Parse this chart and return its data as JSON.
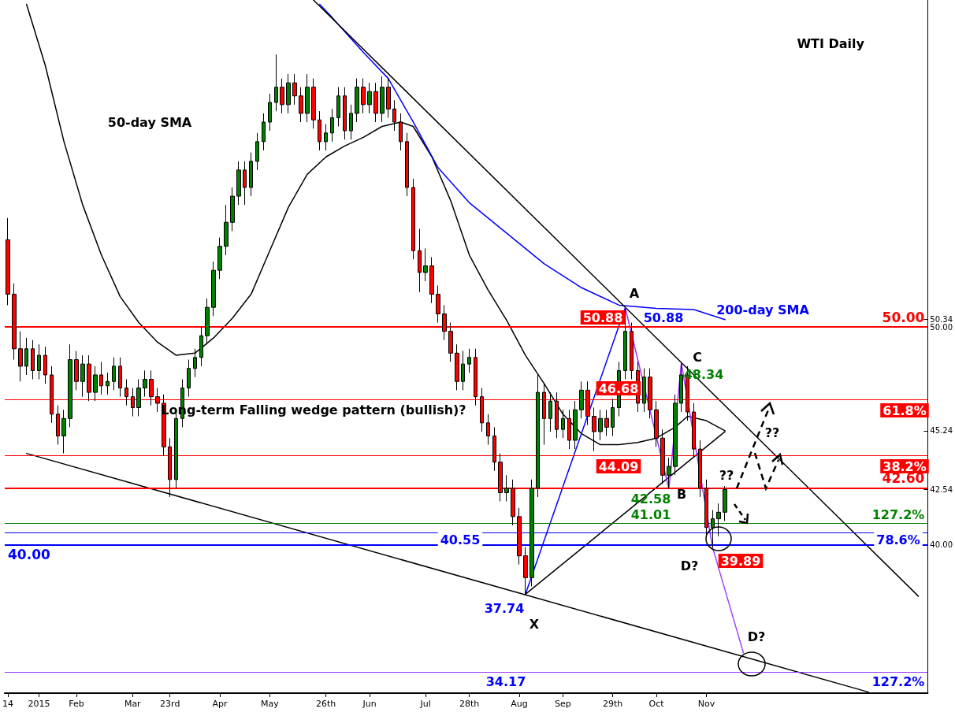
{
  "chart_data": {
    "type": "candlestick",
    "title": "WTI Daily",
    "categories": [
      "14",
      null,
      null,
      null,
      null,
      "2015",
      null,
      null,
      null,
      null,
      null,
      "Feb",
      null,
      null,
      null,
      null,
      null,
      null,
      null,
      null,
      "Mar",
      null,
      null,
      null,
      null,
      null,
      "23rd",
      null,
      null,
      null,
      null,
      null,
      null,
      null,
      "Apr",
      null,
      null,
      null,
      null,
      null,
      null,
      null,
      "May",
      null,
      null,
      null,
      null,
      null,
      null,
      null,
      null,
      "26th",
      null,
      null,
      null,
      null,
      null,
      null,
      "Jun",
      null,
      null,
      null,
      null,
      null,
      null,
      null,
      null,
      "Jul",
      null,
      null,
      null,
      null,
      null,
      null,
      "28th",
      null,
      null,
      null,
      null,
      null,
      null,
      null,
      "Aug",
      null,
      null,
      null,
      null,
      null,
      null,
      "Sep",
      null,
      null,
      null,
      null,
      null,
      null,
      null,
      "29th",
      null,
      null,
      null,
      null,
      null,
      null,
      "Oct",
      null,
      null,
      null,
      null,
      null,
      null,
      null,
      "Nov",
      null,
      null,
      null,
      null,
      null,
      null,
      null,
      null,
      null,
      null,
      null,
      null,
      null,
      null,
      null,
      null,
      null,
      null,
      null,
      null,
      null,
      null,
      null,
      null,
      null,
      null,
      null,
      null,
      null,
      null,
      null,
      null,
      null,
      null,
      null
    ],
    "ohlc": [
      [
        54,
        55,
        51,
        51.5
      ],
      [
        51.5,
        52,
        48.5,
        49
      ],
      [
        49,
        49.8,
        47.5,
        48.2
      ],
      [
        48.2,
        49.5,
        47.8,
        49
      ],
      [
        49,
        49.4,
        47.6,
        48
      ],
      [
        48,
        49.2,
        47.6,
        48.7
      ],
      [
        48.7,
        49.1,
        47.4,
        47.8
      ],
      [
        47.8,
        48.2,
        45.6,
        46
      ],
      [
        46,
        46.4,
        44.6,
        45
      ],
      [
        45,
        46.2,
        44.2,
        45.8
      ],
      [
        45.8,
        49.2,
        45.4,
        48.5
      ],
      [
        48.5,
        48.9,
        47.1,
        47.5
      ],
      [
        47.5,
        48.7,
        46.8,
        48.3
      ],
      [
        48.3,
        48.7,
        46.6,
        47
      ],
      [
        47,
        48.2,
        46.6,
        47.8
      ],
      [
        47.8,
        48.4,
        46.9,
        47.3
      ],
      [
        47.3,
        47.9,
        46.9,
        47.5
      ],
      [
        47.5,
        48.6,
        47.1,
        48.2
      ],
      [
        48.2,
        48.6,
        46.8,
        47.2
      ],
      [
        47.2,
        47.6,
        46.4,
        46.8
      ],
      [
        46.8,
        47.2,
        45.9,
        46.3
      ],
      [
        46.3,
        47.6,
        45.9,
        47.2
      ],
      [
        47.2,
        48,
        46.8,
        47.6
      ],
      [
        47.6,
        48,
        46.4,
        46.8
      ],
      [
        46.8,
        47.2,
        46.1,
        46.5
      ],
      [
        46.5,
        46.9,
        44.1,
        44.5
      ],
      [
        44.5,
        44.9,
        42.2,
        43
      ],
      [
        43,
        46.2,
        42.6,
        45.8
      ],
      [
        45.8,
        47.6,
        45.4,
        47.2
      ],
      [
        47.2,
        48.5,
        46.8,
        48.1
      ],
      [
        48.1,
        49,
        47.7,
        48.6
      ],
      [
        48.6,
        50,
        48.2,
        49.6
      ],
      [
        49.6,
        51.3,
        49.2,
        50.9
      ],
      [
        50.9,
        53,
        50.5,
        52.6
      ],
      [
        52.6,
        54.1,
        52.2,
        53.7
      ],
      [
        53.7,
        55.6,
        53.3,
        54.8
      ],
      [
        54.8,
        56.4,
        54.4,
        56
      ],
      [
        56,
        57.6,
        55.6,
        57.2
      ],
      [
        57.2,
        57.6,
        55.6,
        56.4
      ],
      [
        56.4,
        58,
        56,
        57.6
      ],
      [
        57.6,
        58.9,
        57.2,
        58.5
      ],
      [
        58.5,
        59.8,
        58.1,
        59.4
      ],
      [
        59.4,
        60.7,
        59,
        60.3
      ],
      [
        60.3,
        62.5,
        59.9,
        61
      ],
      [
        61,
        61.4,
        59.8,
        60.2
      ],
      [
        60.2,
        61.6,
        59.8,
        61.2
      ],
      [
        61.2,
        61.6,
        60.2,
        60.6
      ],
      [
        60.6,
        61,
        59.4,
        59.8
      ],
      [
        59.8,
        61.6,
        59.4,
        61
      ],
      [
        61,
        61.4,
        59.1,
        59.5
      ],
      [
        59.5,
        59.9,
        58.1,
        58.5
      ],
      [
        58.5,
        59.3,
        58.1,
        58.9
      ],
      [
        58.9,
        60,
        58.5,
        59.6
      ],
      [
        59.6,
        61,
        59.2,
        60.6
      ],
      [
        60.6,
        61,
        58.6,
        59
      ],
      [
        59,
        60.2,
        58.6,
        59.8
      ],
      [
        59.8,
        61.4,
        59.4,
        61
      ],
      [
        61,
        61.4,
        59.8,
        60.2
      ],
      [
        60.2,
        61.2,
        59.8,
        60.8
      ],
      [
        60.8,
        61.2,
        59.4,
        59.8
      ],
      [
        59.8,
        61.5,
        59.4,
        61
      ],
      [
        61,
        61.4,
        59.6,
        60
      ],
      [
        60,
        60.4,
        59,
        59.4
      ],
      [
        59.4,
        59.8,
        58.1,
        58.5
      ],
      [
        58.5,
        58.9,
        56,
        56.4
      ],
      [
        56.4,
        56.8,
        53.1,
        53.5
      ],
      [
        53.5,
        54.5,
        51.6,
        52.5
      ],
      [
        52.5,
        53.6,
        52.1,
        52.8
      ],
      [
        52.8,
        53.2,
        51.1,
        51.5
      ],
      [
        51.5,
        51.9,
        50.2,
        50.6
      ],
      [
        50.6,
        51,
        49.4,
        49.8
      ],
      [
        49.8,
        50.2,
        48.4,
        48.8
      ],
      [
        48.8,
        49.2,
        47.1,
        47.5
      ],
      [
        47.5,
        48.9,
        47.1,
        48.3
      ],
      [
        48.3,
        49,
        47.9,
        48.6
      ],
      [
        48.6,
        49,
        46.4,
        46.8
      ],
      [
        46.8,
        47.2,
        45.2,
        45.6
      ],
      [
        45.6,
        46,
        44.6,
        45
      ],
      [
        45,
        45.4,
        43.4,
        43.8
      ],
      [
        43.8,
        44.2,
        42,
        42.4
      ],
      [
        42.4,
        43.2,
        42,
        42.6
      ],
      [
        42.6,
        43,
        40.9,
        41.3
      ],
      [
        41.3,
        41.7,
        39.1,
        39.5
      ],
      [
        39.5,
        39.9,
        37.74,
        38.5
      ],
      [
        38.5,
        43,
        38.1,
        42.6
      ],
      [
        42.6,
        47.8,
        42.2,
        47
      ],
      [
        47,
        47.4,
        44.6,
        45.8
      ],
      [
        45.8,
        47,
        45.2,
        46.6
      ],
      [
        46.6,
        47,
        44.9,
        45.3
      ],
      [
        45.3,
        46.2,
        44.9,
        45.8
      ],
      [
        45.8,
        46.2,
        44.4,
        44.8
      ],
      [
        44.8,
        46.6,
        44.4,
        46.2
      ],
      [
        46.2,
        47.5,
        45.8,
        47.1
      ],
      [
        47.1,
        47.5,
        45.5,
        45.9
      ],
      [
        45.9,
        46.3,
        44.3,
        45.2
      ],
      [
        45.2,
        46.2,
        44.8,
        45.8
      ],
      [
        45.8,
        46.2,
        45,
        45.4
      ],
      [
        45.4,
        46.7,
        45,
        46.3
      ],
      [
        46.3,
        48.4,
        45.9,
        48
      ],
      [
        48,
        50.88,
        47.6,
        49.8
      ],
      [
        49.8,
        50.2,
        47.6,
        48
      ],
      [
        48,
        48.4,
        46.1,
        46.5
      ],
      [
        46.5,
        48.1,
        46.1,
        47.7
      ],
      [
        47.7,
        48.1,
        45.8,
        46.2
      ],
      [
        46.2,
        46.6,
        44.5,
        44.9
      ],
      [
        44.9,
        45.3,
        42.8,
        43.2
      ],
      [
        43.2,
        44,
        42.58,
        43.6
      ],
      [
        43.6,
        46.9,
        43.2,
        46.5
      ],
      [
        46.5,
        48.34,
        46.1,
        47.8
      ],
      [
        47.8,
        48.2,
        45.7,
        46.1
      ],
      [
        46.1,
        46.5,
        44,
        44.4
      ],
      [
        44.4,
        44.8,
        42.2,
        42.6
      ],
      [
        42.6,
        43,
        40.4,
        40.8
      ],
      [
        40.8,
        41.6,
        39.89,
        41.2
      ],
      [
        41.2,
        41.9,
        40.4,
        41.5
      ],
      [
        41.5,
        42.7,
        41.1,
        42.54
      ],
      null,
      null,
      null,
      null,
      null,
      null,
      null,
      null,
      null,
      null,
      null,
      null,
      null,
      null,
      null,
      null,
      null,
      null,
      null,
      null,
      null,
      null,
      null,
      null,
      null,
      null,
      null,
      null,
      null,
      null,
      null,
      null
    ],
    "ylim": [
      33.2,
      65
    ],
    "yticks": [
      {
        "value": 40,
        "label": "40.00"
      },
      {
        "value": 42.54,
        "label": "42.54"
      },
      {
        "value": 45.24,
        "label": "45.24"
      },
      {
        "value": 50,
        "label": "50.00"
      },
      {
        "value": 50.34,
        "label": "50.34"
      }
    ],
    "marker": "none",
    "series": [
      {
        "type": "line",
        "color": "#000000",
        "values": [
          null,
          null,
          null,
          64.8,
          null,
          null,
          62,
          null,
          null,
          58.5,
          null,
          null,
          55.6,
          null,
          null,
          53.3,
          null,
          null,
          51.4,
          null,
          null,
          50.2,
          null,
          null,
          49.3,
          null,
          null,
          48.7,
          null,
          null,
          48.8,
          null,
          null,
          49.5,
          null,
          null,
          50.4,
          null,
          null,
          51.5,
          null,
          null,
          53.5,
          null,
          null,
          55.5,
          null,
          null,
          57,
          null,
          null,
          57.8,
          null,
          null,
          58.3,
          null,
          null,
          58.7,
          null,
          null,
          59.2,
          null,
          null,
          59.4,
          null,
          59.2,
          null,
          null,
          57.8,
          null,
          null,
          55.8,
          null,
          null,
          53.3,
          null,
          null,
          51.7,
          null,
          null,
          50.3,
          null,
          null,
          48.7,
          null,
          null,
          47.4,
          null,
          null,
          46,
          null,
          null,
          45.1,
          null,
          null,
          44.6,
          null,
          null,
          44.6,
          null,
          null,
          44.7,
          null,
          null,
          44.9,
          null,
          null,
          45.4,
          null,
          45.9,
          null,
          null,
          45.7,
          null,
          null,
          45.24,
          null,
          null,
          null,
          null,
          null,
          null,
          null,
          null,
          null,
          null,
          null,
          null,
          null,
          null,
          null,
          null,
          null,
          null,
          null,
          null,
          null,
          null,
          null,
          null,
          null,
          null,
          null,
          null,
          null,
          null,
          null,
          null
        ]
      },
      {
        "type": "line",
        "color": "#0000ff",
        "values": [
          null,
          null,
          null,
          null,
          null,
          null,
          null,
          null,
          null,
          null,
          null,
          null,
          null,
          null,
          null,
          null,
          null,
          null,
          null,
          null,
          null,
          null,
          null,
          null,
          null,
          null,
          null,
          null,
          null,
          null,
          null,
          null,
          null,
          null,
          null,
          null,
          null,
          null,
          null,
          null,
          null,
          null,
          null,
          null,
          null,
          null,
          null,
          null,
          null,
          null,
          64.8,
          null,
          64.2,
          null,
          null,
          null,
          null,
          62.6,
          null,
          null,
          null,
          61.4,
          null,
          null,
          null,
          59.4,
          null,
          null,
          null,
          57.3,
          null,
          null,
          null,
          null,
          55.7,
          null,
          null,
          null,
          null,
          null,
          54.3,
          null,
          null,
          null,
          null,
          null,
          52.9,
          null,
          null,
          null,
          null,
          null,
          51.8,
          null,
          null,
          null,
          null,
          null,
          51,
          null,
          null,
          null,
          null,
          null,
          50.85,
          null,
          null,
          null,
          null,
          null,
          50.8,
          null,
          null,
          null,
          null,
          50.34,
          null,
          null,
          null,
          null,
          null,
          null,
          null,
          null,
          null,
          null,
          null,
          null,
          null,
          null,
          null,
          null,
          null,
          null,
          null,
          null,
          null,
          null,
          null,
          null,
          null,
          null,
          null,
          null,
          null,
          null,
          null,
          null
        ]
      },
      {
        "type": "line",
        "color": "#000000",
        "values": [
          null,
          null,
          null,
          null,
          null,
          null,
          null,
          null,
          null,
          null,
          null,
          null,
          null,
          null,
          null,
          null,
          null,
          null,
          null,
          null,
          null,
          null,
          null,
          null,
          null,
          null,
          null,
          null,
          null,
          null,
          null,
          null,
          null,
          null,
          null,
          null,
          null,
          null,
          null,
          null,
          null,
          null,
          null,
          null,
          null,
          null,
          null,
          null,
          null,
          65,
          null,
          null,
          null,
          null,
          null,
          null,
          null,
          null,
          null,
          null,
          null,
          null,
          null,
          null,
          null,
          null,
          null,
          null,
          null,
          null,
          null,
          null,
          null,
          null,
          null,
          null,
          null,
          null,
          null,
          null,
          null,
          null,
          null,
          null,
          null,
          null,
          null,
          null,
          null,
          null,
          null,
          null,
          null,
          null,
          null,
          null,
          null,
          null,
          null,
          null,
          null,
          null,
          null,
          null,
          null,
          null,
          null,
          null,
          null,
          null,
          null,
          null,
          null,
          null,
          null,
          null,
          null,
          null,
          null,
          null,
          null,
          null,
          null,
          null,
          null,
          null,
          null,
          null,
          null,
          null,
          null,
          null,
          null,
          null,
          null,
          null,
          null,
          null,
          null,
          null,
          null,
          null,
          null,
          null,
          null,
          null,
          37.65,
          null
        ]
      },
      {
        "type": "line",
        "color": "#000000",
        "values": [
          null,
          null,
          null,
          44.2,
          null,
          null,
          null,
          null,
          null,
          null,
          null,
          null,
          null,
          null,
          null,
          null,
          null,
          null,
          null,
          null,
          null,
          null,
          null,
          null,
          null,
          null,
          null,
          null,
          null,
          null,
          null,
          null,
          null,
          null,
          null,
          null,
          null,
          null,
          null,
          null,
          null,
          null,
          null,
          null,
          null,
          null,
          null,
          null,
          null,
          null,
          null,
          null,
          null,
          null,
          null,
          null,
          null,
          null,
          null,
          null,
          null,
          null,
          null,
          null,
          null,
          null,
          null,
          null,
          null,
          null,
          null,
          null,
          null,
          null,
          null,
          null,
          null,
          null,
          null,
          null,
          null,
          null,
          null,
          null,
          null,
          null,
          null,
          null,
          null,
          null,
          null,
          null,
          null,
          null,
          null,
          null,
          null,
          null,
          null,
          null,
          null,
          null,
          null,
          null,
          null,
          null,
          null,
          null,
          null,
          null,
          null,
          null,
          null,
          null,
          null,
          null,
          null,
          null,
          null,
          null,
          null,
          null,
          null,
          null,
          null,
          null,
          null,
          null,
          null,
          null,
          null,
          null,
          null,
          null,
          null,
          null,
          null,
          null,
          33.25,
          null,
          null,
          null,
          null,
          null,
          null,
          null,
          null,
          null
        ]
      },
      {
        "type": "line",
        "color": "#0000ff",
        "values": [
          null,
          null,
          null,
          null,
          null,
          null,
          null,
          null,
          null,
          null,
          null,
          null,
          null,
          null,
          null,
          null,
          null,
          null,
          null,
          null,
          null,
          null,
          null,
          null,
          null,
          null,
          null,
          null,
          null,
          null,
          null,
          null,
          null,
          null,
          null,
          null,
          null,
          null,
          null,
          null,
          null,
          null,
          null,
          null,
          null,
          null,
          null,
          null,
          null,
          null,
          null,
          null,
          null,
          null,
          null,
          null,
          null,
          null,
          null,
          null,
          null,
          null,
          null,
          null,
          null,
          null,
          null,
          null,
          null,
          null,
          null,
          null,
          null,
          null,
          null,
          null,
          null,
          null,
          null,
          null,
          null,
          null,
          null,
          37.74,
          null,
          null,
          null,
          null,
          null,
          null,
          null,
          null,
          null,
          null,
          null,
          null,
          null,
          null,
          null,
          50.88,
          null,
          null,
          null,
          null,
          null,
          null,
          null,
          null,
          null,
          null,
          null,
          null,
          null,
          null,
          null,
          null,
          null,
          null,
          null,
          null,
          null,
          null,
          null,
          null,
          null,
          null,
          null,
          null,
          null,
          null,
          null,
          null,
          null,
          null,
          null,
          null,
          null,
          null,
          null,
          null,
          null,
          null,
          null,
          null,
          null,
          null,
          null,
          null
        ]
      },
      {
        "type": "line",
        "color": "#000000",
        "values": [
          null,
          null,
          null,
          null,
          null,
          null,
          null,
          null,
          null,
          null,
          null,
          null,
          null,
          null,
          null,
          null,
          null,
          null,
          null,
          null,
          null,
          null,
          null,
          null,
          null,
          null,
          null,
          null,
          null,
          null,
          null,
          null,
          null,
          null,
          null,
          null,
          null,
          null,
          null,
          null,
          null,
          null,
          null,
          null,
          null,
          null,
          null,
          null,
          null,
          null,
          null,
          null,
          null,
          null,
          null,
          null,
          null,
          null,
          null,
          null,
          null,
          null,
          null,
          null,
          null,
          null,
          null,
          null,
          null,
          null,
          null,
          null,
          null,
          null,
          null,
          null,
          null,
          null,
          null,
          null,
          null,
          null,
          null,
          37.74,
          null,
          null,
          null,
          null,
          null,
          null,
          null,
          null,
          null,
          null,
          null,
          null,
          null,
          null,
          null,
          null,
          null,
          null,
          null,
          null,
          null,
          null,
          null,
          null,
          null,
          null,
          null,
          null,
          null,
          null,
          null,
          45.2,
          null,
          null,
          null,
          null,
          null,
          null,
          null,
          null,
          null,
          null,
          null,
          null,
          null,
          null,
          null,
          null,
          null,
          null,
          null,
          null,
          null,
          null,
          null,
          null,
          null,
          null,
          null,
          null,
          null,
          null,
          null,
          null
        ]
      },
      {
        "type": "line",
        "color": "#9933ff",
        "values": [
          null,
          null,
          null,
          null,
          null,
          null,
          null,
          null,
          null,
          null,
          null,
          null,
          null,
          null,
          null,
          null,
          null,
          null,
          null,
          null,
          null,
          null,
          null,
          null,
          null,
          null,
          null,
          null,
          null,
          null,
          null,
          null,
          null,
          null,
          null,
          null,
          null,
          null,
          null,
          null,
          null,
          null,
          null,
          null,
          null,
          null,
          null,
          null,
          null,
          null,
          null,
          null,
          null,
          null,
          null,
          null,
          null,
          null,
          null,
          null,
          null,
          null,
          null,
          null,
          null,
          null,
          null,
          null,
          null,
          null,
          null,
          null,
          null,
          null,
          null,
          null,
          null,
          null,
          null,
          null,
          null,
          null,
          null,
          null,
          null,
          null,
          null,
          null,
          null,
          null,
          null,
          null,
          null,
          null,
          null,
          null,
          null,
          null,
          null,
          50.88,
          null,
          null,
          null,
          null,
          null,
          null,
          42.58,
          null,
          48.34,
          null,
          null,
          null,
          null,
          39.89,
          null,
          null,
          null,
          null,
          null,
          null,
          null,
          null,
          null,
          null,
          null,
          null,
          null,
          null,
          null,
          null,
          null,
          null,
          null,
          null,
          null,
          null,
          null,
          null,
          null,
          null,
          null,
          null,
          null,
          null,
          null,
          null,
          null,
          null
        ]
      },
      {
        "type": "line",
        "color": "#9933ff",
        "line_style": "dotted",
        "values": [
          null,
          null,
          null,
          null,
          null,
          null,
          null,
          null,
          null,
          null,
          null,
          null,
          null,
          null,
          null,
          null,
          null,
          null,
          null,
          null,
          null,
          null,
          null,
          null,
          null,
          null,
          null,
          null,
          null,
          null,
          null,
          null,
          null,
          null,
          null,
          null,
          null,
          null,
          null,
          null,
          null,
          null,
          null,
          null,
          null,
          null,
          null,
          null,
          null,
          null,
          null,
          null,
          null,
          null,
          null,
          null,
          null,
          null,
          null,
          null,
          null,
          null,
          null,
          null,
          null,
          null,
          null,
          null,
          null,
          null,
          null,
          null,
          null,
          null,
          null,
          null,
          null,
          null,
          null,
          null,
          null,
          null,
          null,
          null,
          null,
          null,
          null,
          null,
          null,
          null,
          null,
          null,
          null,
          null,
          null,
          null,
          null,
          null,
          null,
          null,
          null,
          null,
          null,
          null,
          null,
          null,
          null,
          null,
          null,
          null,
          null,
          null,
          null,
          39.89,
          null,
          null,
          null,
          null,
          35,
          null,
          null,
          null,
          null,
          null,
          null,
          null,
          null,
          null,
          null,
          null,
          null,
          null,
          null,
          null,
          null,
          null,
          null,
          null,
          null,
          null,
          null,
          null,
          null,
          null,
          null,
          null,
          null,
          null
        ]
      }
    ],
    "ref_lines": [
      {
        "axis": "y",
        "value": 50,
        "label": "50.00",
        "color": "#ff0000"
      },
      {
        "axis": "y",
        "value": 46.68,
        "label": null,
        "color": "#ff0000"
      },
      {
        "axis": "y",
        "value": 44.09,
        "label": null,
        "color": "#ff0000"
      },
      {
        "axis": "y",
        "value": 42.6,
        "label": "42.60",
        "color": "#ff0000"
      },
      {
        "axis": "y",
        "value": 41.01,
        "label": null,
        "color": "#008000"
      },
      {
        "axis": "y",
        "value": 40.55,
        "label": null,
        "color": "#0000ff"
      },
      {
        "axis": "y",
        "value": 40,
        "label": "40.00",
        "color": "#0000ff"
      },
      {
        "axis": "y",
        "value": 34.17,
        "label": null,
        "color": "#9933ff"
      }
    ],
    "annotations": [
      "50-day SMA",
      "200-day SMA",
      "Long-term Falling wedge pattern (bullish)?",
      "A",
      "50.88",
      "50.88",
      "C",
      "48.34",
      "46.68",
      "44.09",
      "42.58",
      "41.01",
      "B",
      "??",
      "??",
      "D?",
      "39.89",
      "40.55",
      "37.74",
      "X",
      "D?",
      "34.17",
      "61.8%",
      "38.2%",
      "127.2%",
      "78.6%",
      "127.2%"
    ]
  }
}
